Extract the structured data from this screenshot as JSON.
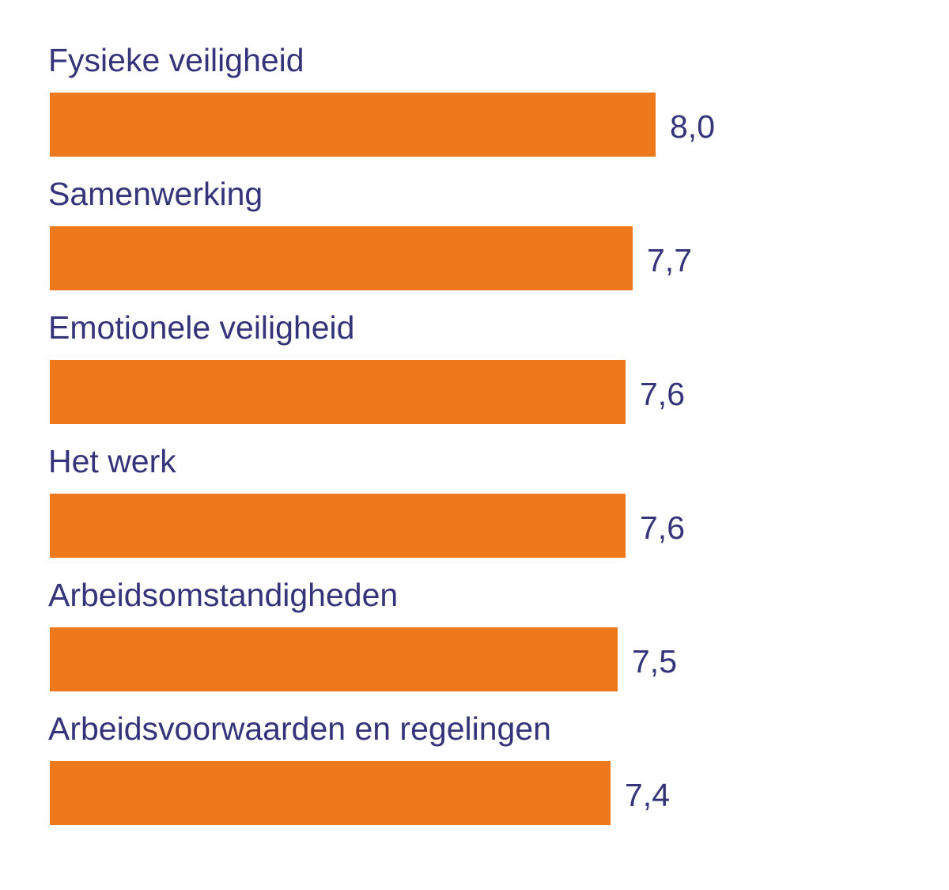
{
  "chart_data": {
    "type": "bar",
    "orientation": "horizontal",
    "categories": [
      "Fysieke veiligheid",
      "Samenwerking",
      "Emotionele veiligheid",
      "Het werk",
      "Arbeidsomstandigheden",
      "Arbeidsvoorwaarden en regelingen"
    ],
    "values": [
      8.0,
      7.7,
      7.6,
      7.6,
      7.5,
      7.4
    ],
    "value_labels": [
      "8,0",
      "7,7",
      "7,6",
      "7,6",
      "7,5",
      "7,4"
    ],
    "title": "",
    "xlabel": "",
    "ylabel": "",
    "xlim": [
      0,
      8.0
    ],
    "grid": false,
    "legend": "none",
    "colors": {
      "bar": "#ee781c",
      "text": "#35347a"
    }
  }
}
